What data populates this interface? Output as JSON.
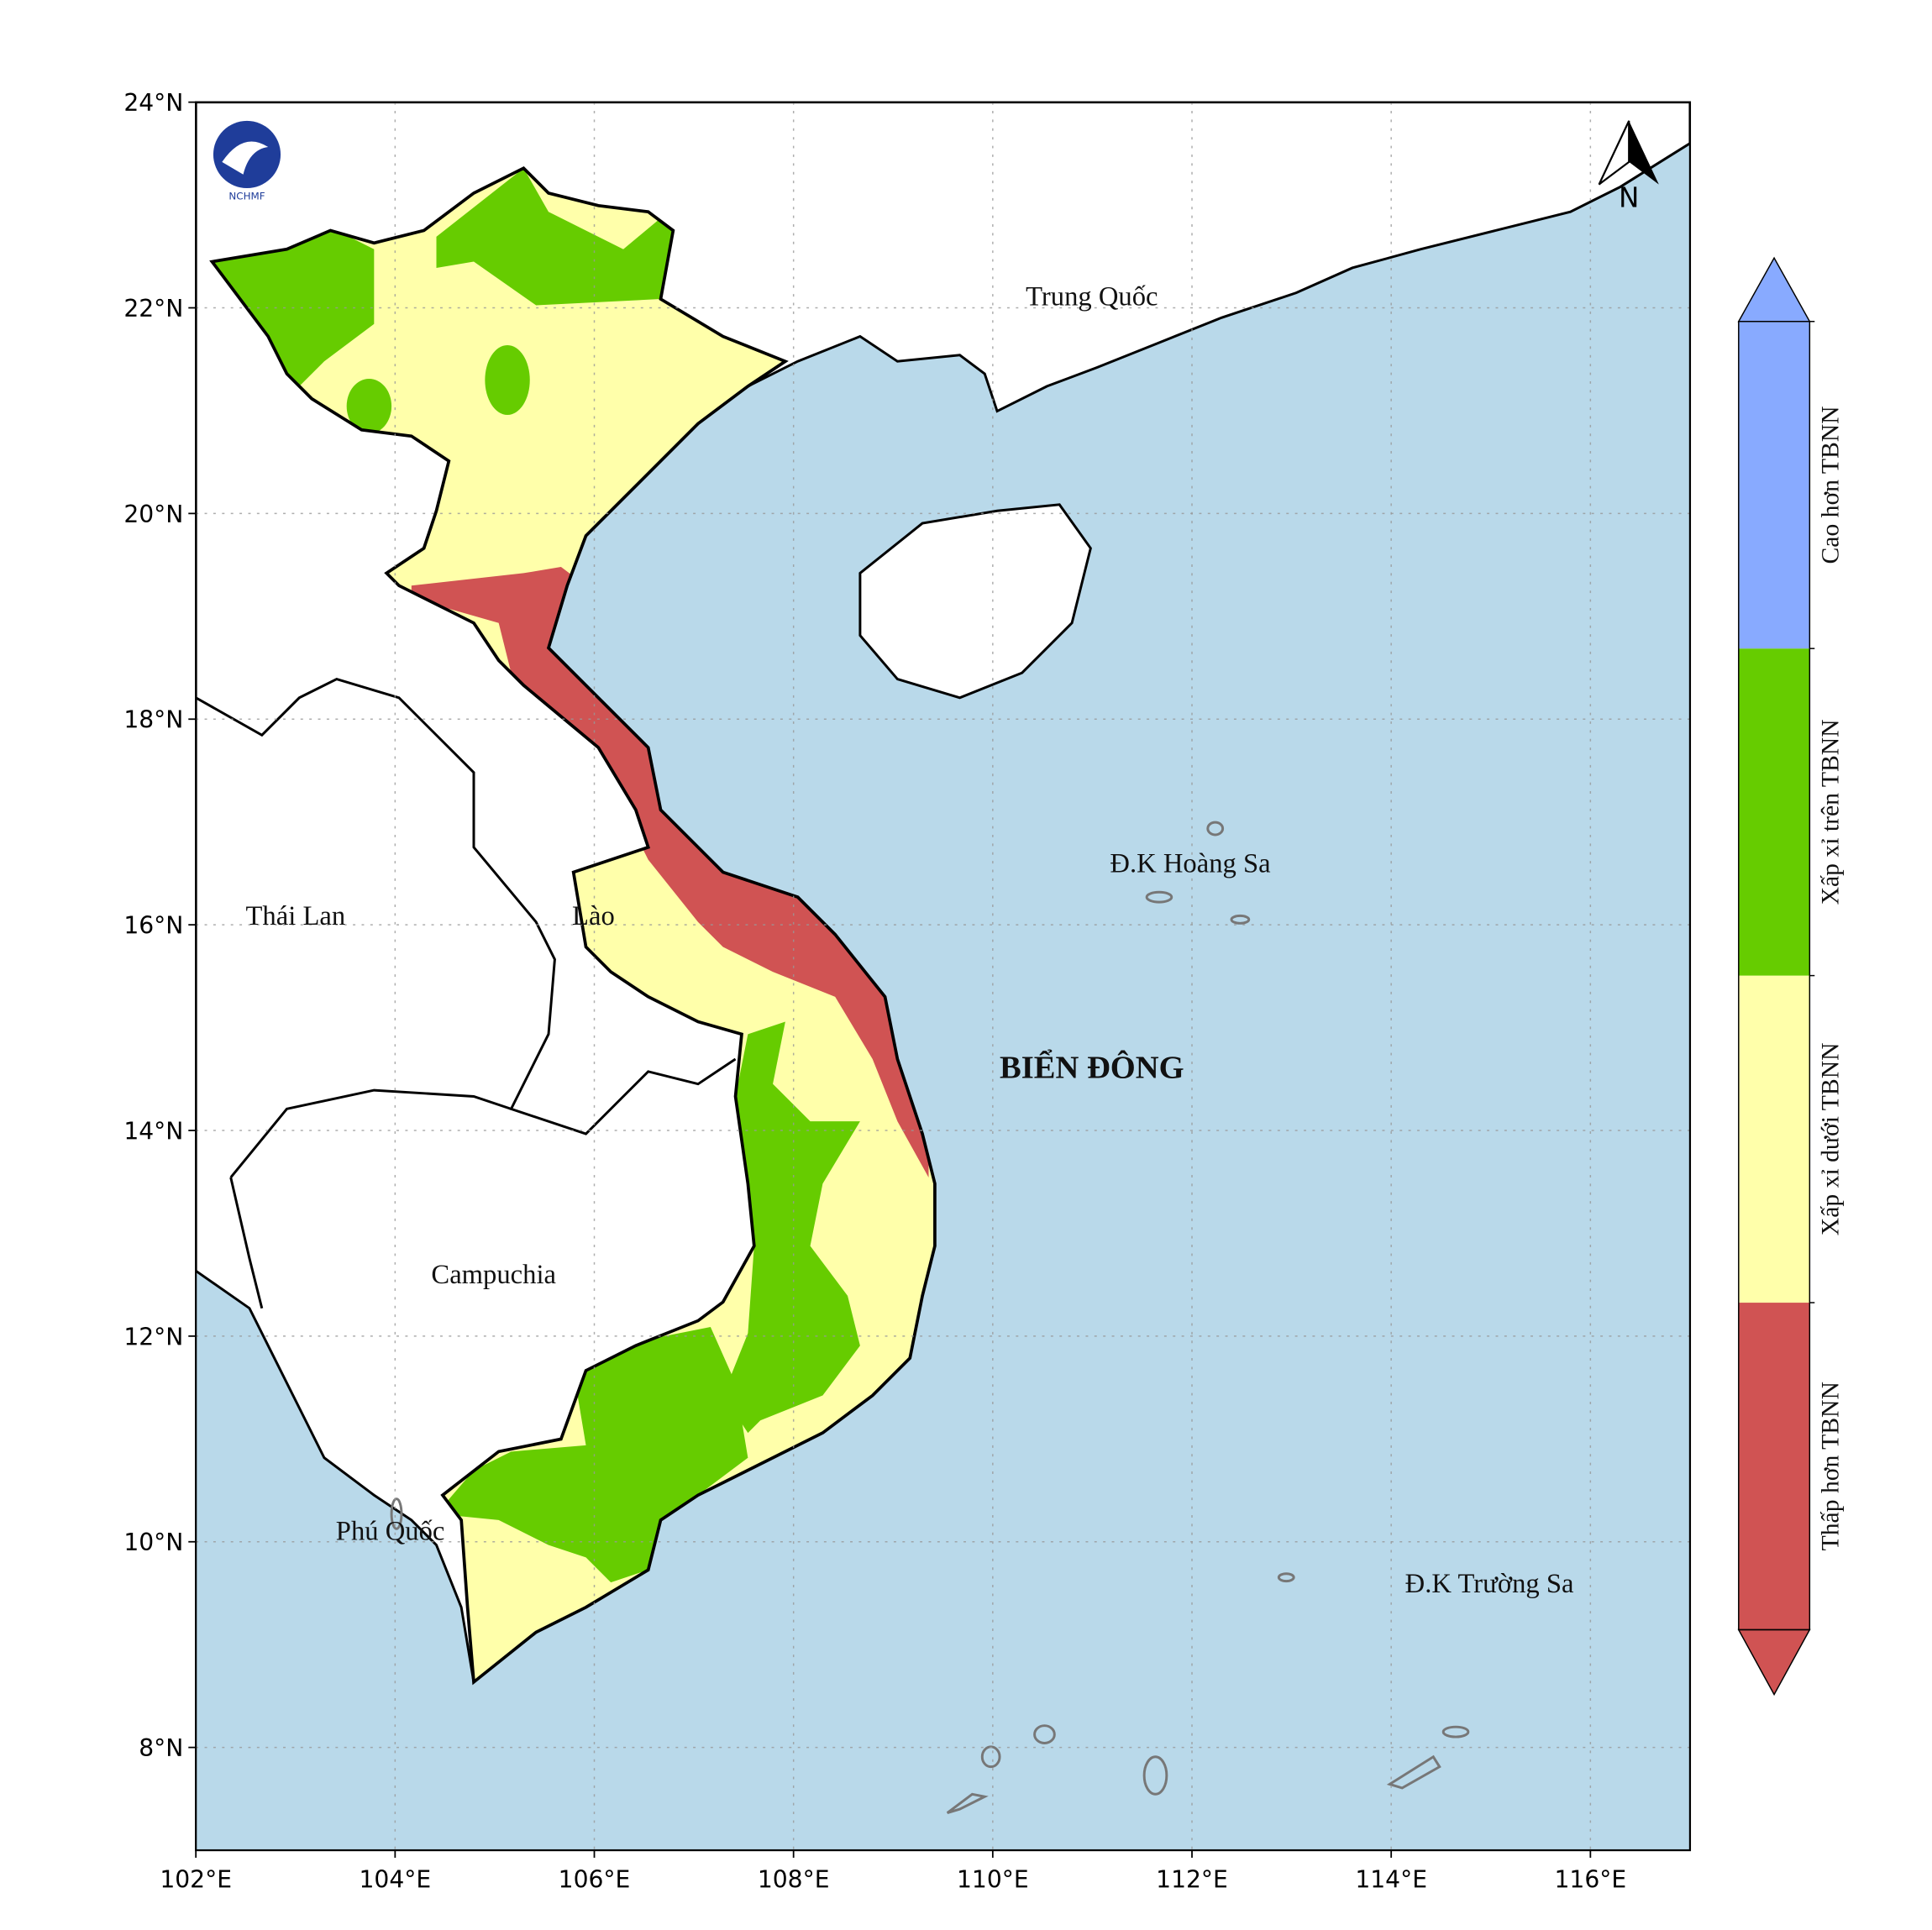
{
  "map": {
    "xlim": [
      102,
      117
    ],
    "ylim": [
      7,
      24
    ],
    "xticks": [
      {
        "value": 102,
        "label": "102°E"
      },
      {
        "value": 104,
        "label": "104°E"
      },
      {
        "value": 106,
        "label": "106°E"
      },
      {
        "value": 108,
        "label": "108°E"
      },
      {
        "value": 110,
        "label": "110°E"
      },
      {
        "value": 112,
        "label": "112°E"
      },
      {
        "value": 114,
        "label": "114°E"
      },
      {
        "value": 116,
        "label": "116°E"
      }
    ],
    "yticks": [
      {
        "value": 8,
        "label": "8°N"
      },
      {
        "value": 10,
        "label": "10°N"
      },
      {
        "value": 12,
        "label": "12°N"
      },
      {
        "value": 14,
        "label": "14°N"
      },
      {
        "value": 16,
        "label": "16°N"
      },
      {
        "value": 18,
        "label": "18°N"
      },
      {
        "value": 20,
        "label": "20°N"
      },
      {
        "value": 22,
        "label": "22°N"
      },
      {
        "value": 24,
        "label": "24°N"
      }
    ],
    "grid": true,
    "places": [
      "Trung Quốc",
      "Thái Lan",
      "Lào",
      "Campuchia",
      "Đ.K Hoàng Sa",
      "Đ.K Trường Sa",
      "Phú Quốc"
    ],
    "sea_label": "BIỂN ĐÔNG",
    "north_label": "N",
    "logo_text": "NCHMF",
    "legend": [
      {
        "label": "Thấp hơn TBNN",
        "color": "#d05353"
      },
      {
        "label": "Xấp xỉ dưới TBNN",
        "color": "#ffffaa"
      },
      {
        "label": "Xấp xỉ trên TBNN",
        "color": "#66cc00"
      },
      {
        "label": "Cao hơn TBNN",
        "color": "#88aaff"
      }
    ]
  }
}
